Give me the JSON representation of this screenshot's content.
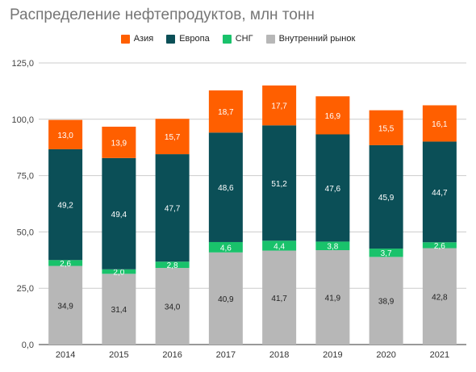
{
  "chart_data": {
    "type": "bar",
    "stacked": true,
    "title": "Распределение нефтепродуктов, млн тонн",
    "categories": [
      "2014",
      "2015",
      "2016",
      "2017",
      "2018",
      "2019",
      "2020",
      "2021"
    ],
    "series": [
      {
        "name": "Внутренний рынок",
        "color": "#b7b7b7",
        "values": [
          34.9,
          31.4,
          34.0,
          40.9,
          41.7,
          41.9,
          38.9,
          42.8
        ],
        "labels": [
          "34,9",
          "31,4",
          "34,0",
          "40,9",
          "41,7",
          "41,9",
          "38,9",
          "42,8"
        ]
      },
      {
        "name": "СНГ",
        "color": "#19c26b",
        "values": [
          2.6,
          2.0,
          2.8,
          4.6,
          4.4,
          3.8,
          3.7,
          2.6
        ],
        "labels": [
          "2,6",
          "2,0",
          "2,8",
          "4,6",
          "4,4",
          "3,8",
          "3,7",
          "2,6"
        ]
      },
      {
        "name": "Европа",
        "color": "#0b4f57",
        "values": [
          49.2,
          49.4,
          47.7,
          48.6,
          51.2,
          47.6,
          45.9,
          44.7
        ],
        "labels": [
          "49,2",
          "49,4",
          "47,7",
          "48,6",
          "51,2",
          "47,6",
          "45,9",
          "44,7"
        ]
      },
      {
        "name": "Азия",
        "color": "#ff5f00",
        "values": [
          13.0,
          13.9,
          15.7,
          18.7,
          17.7,
          16.9,
          15.5,
          16.1
        ],
        "labels": [
          "13,0",
          "13,9",
          "15,7",
          "18,7",
          "17,7",
          "16,9",
          "15,5",
          "16,1"
        ]
      }
    ],
    "legend_order": [
      "Азия",
      "Европа",
      "СНГ",
      "Внутренний рынок"
    ],
    "legend_position": "top",
    "ylim": [
      0,
      125
    ],
    "yticks": [
      0,
      25,
      50,
      75,
      100,
      125
    ],
    "ytick_labels": [
      "0,0",
      "25,0",
      "50,0",
      "75,0",
      "100,0",
      "125,0"
    ],
    "grid": true
  }
}
